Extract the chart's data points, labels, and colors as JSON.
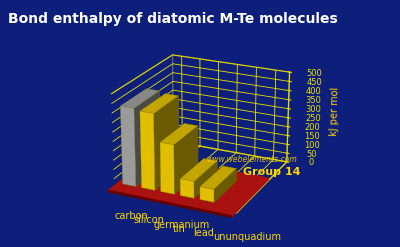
{
  "title": "Bond enthalpy of diatomic M-Te molecules",
  "ylabel": "kJ per mol",
  "group_label": "Group 14",
  "watermark": "www.webelements.com",
  "elements": [
    "carbon",
    "silicon",
    "germanium",
    "tin",
    "lead",
    "ununquadium"
  ],
  "values": [
    420,
    410,
    265,
    90,
    69,
    0
  ],
  "bar_colors": [
    "#b0b0b0",
    "#ffd700",
    "#ffd700",
    "#ffd700",
    "#ffd700",
    "#ffd700"
  ],
  "bar_colors_dark": [
    "#808080",
    "#c8a000",
    "#c8a000",
    "#c8a000",
    "#c8a000",
    "#c8a000"
  ],
  "background_color": "#0d1f7a",
  "base_color": "#aa1111",
  "base_dark_color": "#660000",
  "grid_color": "#e8e000",
  "ylim": [
    0,
    500
  ],
  "yticks": [
    0,
    50,
    100,
    150,
    200,
    250,
    300,
    350,
    400,
    450,
    500
  ],
  "title_color": "#ffffff",
  "label_color": "#ffd700",
  "tick_color": "#e8e000",
  "title_fontsize": 10,
  "ylabel_fontsize": 7,
  "element_fontsize": 7,
  "elev": 22,
  "azim": -65
}
